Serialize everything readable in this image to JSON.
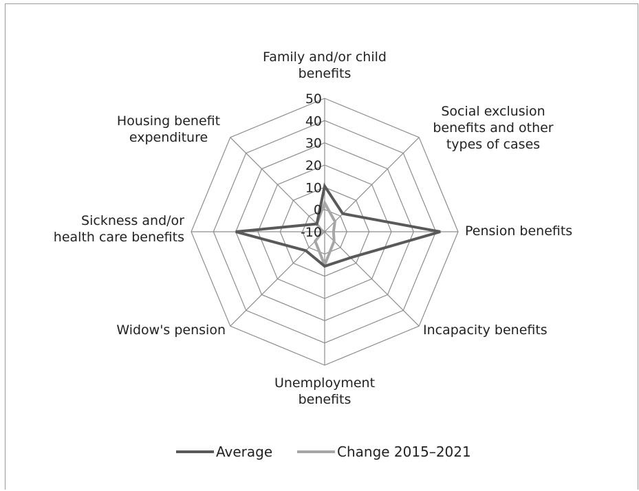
{
  "chart_data": {
    "type": "radar",
    "axes": [
      [
        "Family and/or child",
        "benefits"
      ],
      [
        "Social exclusion",
        "benefits and other",
        "types of cases"
      ],
      [
        "Pension benefits"
      ],
      [
        "Incapacity benefits"
      ],
      [
        "Unemployment",
        "benefits"
      ],
      [
        "Widow's pension"
      ],
      [
        "Sickness and/or",
        "health care benefits"
      ],
      [
        "Housing benefit",
        "expenditure"
      ]
    ],
    "ticks": [
      "-10",
      "0",
      "10",
      "20",
      "30",
      "40",
      "50"
    ],
    "rlim": [
      -10,
      50
    ],
    "series": [
      {
        "name": "Average",
        "color": "#595959",
        "values": [
          10.5,
          1.5,
          42,
          6.5,
          5.5,
          2,
          30,
          -5
        ]
      },
      {
        "name": "Change 2015–2021",
        "color": "#a6a6a6",
        "values": [
          3,
          -3.5,
          -6,
          -4,
          5,
          -4,
          -9,
          -5
        ]
      }
    ],
    "grid": true,
    "legend": "bottom"
  }
}
